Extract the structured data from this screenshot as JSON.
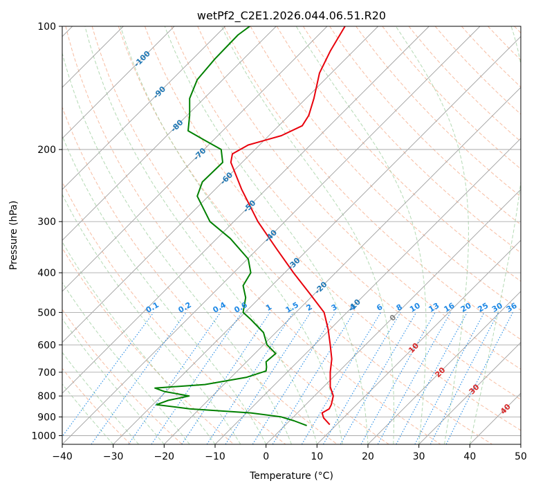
{
  "chart_data": {
    "type": "line",
    "subtype": "skew-t",
    "title": "wetPf2_C2E1.2026.044.06.51.R20",
    "xlabel": "Temperature (°C)",
    "ylabel": "Pressure (hPa)",
    "xlim": [
      -40,
      50
    ],
    "ylim": [
      1050,
      100
    ],
    "y_scale": "log",
    "grid": true,
    "x_ticks": [
      "−40",
      "−30",
      "−20",
      "−10",
      "0",
      "10",
      "20",
      "30",
      "40",
      "50"
    ],
    "y_ticks": [
      "100",
      "200",
      "300",
      "400",
      "500",
      "600",
      "700",
      "800",
      "900",
      "1000"
    ],
    "isotherm_labels": [
      "-100",
      "-90",
      "-80",
      "-70",
      "-60",
      "-50",
      "-40",
      "-30",
      "-20",
      "-10",
      "0",
      "10",
      "20",
      "30",
      "40"
    ],
    "mixing_ratio_labels": [
      "0.1",
      "0.2",
      "0.4",
      "0.6",
      "1",
      "1.5",
      "2",
      "3",
      "4",
      "6",
      "8",
      "10",
      "13",
      "16",
      "20",
      "25",
      "30",
      "36"
    ],
    "colors": {
      "temperature": "#e8000b",
      "dewpoint": "#008000",
      "isotherm_label": "#1f77b4",
      "mixing_ratio": "#1e88e5",
      "dry_adiabat": "#f4a582",
      "moist_adiabat": "#99cc99",
      "isotherm_line": "#9e9e9e",
      "hot_label": "#d62728",
      "zero_label": "#808080"
    },
    "series": [
      {
        "name": "",
        "key": "temperature",
        "points": [
          {
            "p": 940,
            "x": 12.5
          },
          {
            "p": 905,
            "x": 11.3
          },
          {
            "p": 880,
            "x": 11.0
          },
          {
            "p": 860,
            "x": 12.4
          },
          {
            "p": 840,
            "x": 12.8
          },
          {
            "p": 800,
            "x": 13.2
          },
          {
            "p": 760,
            "x": 12.6
          },
          {
            "p": 700,
            "x": 12.6
          },
          {
            "p": 650,
            "x": 12.9
          },
          {
            "p": 600,
            "x": 12.6
          },
          {
            "p": 550,
            "x": 12.2
          },
          {
            "p": 500,
            "x": 11.4
          },
          {
            "p": 450,
            "x": 8.6
          },
          {
            "p": 400,
            "x": 5.4
          },
          {
            "p": 350,
            "x": 2.1
          },
          {
            "p": 300,
            "x": -1.6
          },
          {
            "p": 250,
            "x": -4.8
          },
          {
            "p": 215,
            "x": -6.9
          },
          {
            "p": 205,
            "x": -6.6
          },
          {
            "p": 195,
            "x": -3.5
          },
          {
            "p": 185,
            "x": 3.0
          },
          {
            "p": 175,
            "x": 7.1
          },
          {
            "p": 165,
            "x": 8.4
          },
          {
            "p": 150,
            "x": 9.4
          },
          {
            "p": 130,
            "x": 10.5
          },
          {
            "p": 115,
            "x": 12.6
          },
          {
            "p": 100,
            "x": 15.5
          }
        ]
      },
      {
        "name": "",
        "key": "dewpoint",
        "points": [
          {
            "p": 945,
            "x": 8.0
          },
          {
            "p": 920,
            "x": 5.5
          },
          {
            "p": 900,
            "x": 3.0
          },
          {
            "p": 880,
            "x": -3.0
          },
          {
            "p": 860,
            "x": -15.0
          },
          {
            "p": 840,
            "x": -21.5
          },
          {
            "p": 820,
            "x": -19.2
          },
          {
            "p": 800,
            "x": -15.1
          },
          {
            "p": 780,
            "x": -20.0
          },
          {
            "p": 765,
            "x": -21.8
          },
          {
            "p": 750,
            "x": -12.0
          },
          {
            "p": 720,
            "x": -3.8
          },
          {
            "p": 695,
            "x": 0.0
          },
          {
            "p": 680,
            "x": 0.1
          },
          {
            "p": 660,
            "x": 0.0
          },
          {
            "p": 630,
            "x": 1.9
          },
          {
            "p": 600,
            "x": 0.2
          },
          {
            "p": 560,
            "x": -0.5
          },
          {
            "p": 520,
            "x": -3.0
          },
          {
            "p": 500,
            "x": -4.5
          },
          {
            "p": 460,
            "x": -4.0
          },
          {
            "p": 430,
            "x": -4.5
          },
          {
            "p": 400,
            "x": -3.0
          },
          {
            "p": 370,
            "x": -3.5
          },
          {
            "p": 330,
            "x": -7.0
          },
          {
            "p": 300,
            "x": -11.0
          },
          {
            "p": 260,
            "x": -13.5
          },
          {
            "p": 240,
            "x": -12.5
          },
          {
            "p": 215,
            "x": -8.5
          },
          {
            "p": 200,
            "x": -8.8
          },
          {
            "p": 190,
            "x": -12.0
          },
          {
            "p": 180,
            "x": -15.3
          },
          {
            "p": 165,
            "x": -15.0
          },
          {
            "p": 150,
            "x": -15.0
          },
          {
            "p": 135,
            "x": -13.5
          },
          {
            "p": 120,
            "x": -10.0
          },
          {
            "p": 105,
            "x": -5.5
          },
          {
            "p": 100,
            "x": -3.2
          }
        ]
      }
    ]
  }
}
